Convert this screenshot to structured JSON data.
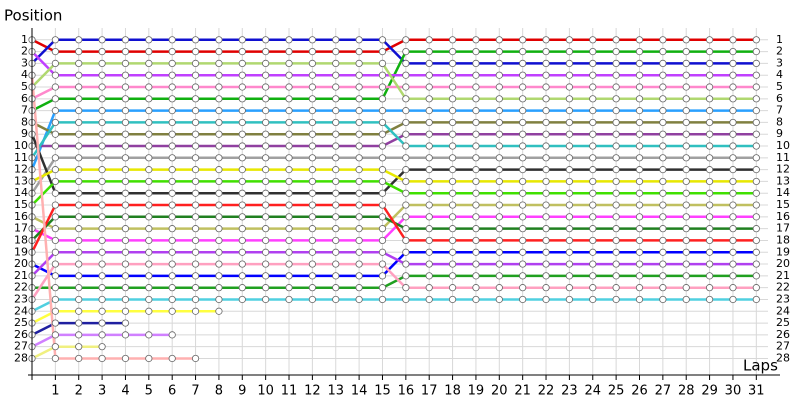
{
  "chart_data": {
    "type": "line",
    "xlabel": "Laps",
    "ylabel": "Position",
    "x": [
      0,
      1,
      2,
      3,
      4,
      5,
      6,
      7,
      8,
      9,
      10,
      11,
      12,
      13,
      14,
      15,
      16,
      17,
      18,
      19,
      20,
      21,
      22,
      23,
      24,
      25,
      26,
      27,
      28,
      29,
      30,
      31
    ],
    "xlim": [
      0,
      31.5
    ],
    "xticks": [
      1,
      2,
      3,
      4,
      5,
      6,
      7,
      8,
      9,
      10,
      11,
      12,
      13,
      14,
      15,
      16,
      17,
      18,
      19,
      20,
      21,
      22,
      23,
      24,
      25,
      26,
      27,
      28,
      29,
      30,
      31
    ],
    "ylim": [
      29.4,
      0
    ],
    "yticks": [
      1,
      2,
      3,
      4,
      5,
      6,
      7,
      8,
      9,
      10,
      11,
      12,
      13,
      14,
      15,
      16,
      17,
      18,
      19,
      20,
      21,
      22,
      23,
      24,
      25,
      26,
      27,
      28
    ],
    "grid": true,
    "series": [
      {
        "color": "#e00000",
        "values": [
          1,
          2,
          2,
          2,
          2,
          2,
          2,
          2,
          2,
          2,
          2,
          2,
          2,
          2,
          2,
          2,
          1,
          1,
          1,
          1,
          1,
          1,
          1,
          1,
          1,
          1,
          1,
          1,
          1,
          1,
          1,
          1
        ]
      },
      {
        "color": "#1010d0",
        "values": [
          3,
          1,
          1,
          1,
          1,
          1,
          1,
          1,
          1,
          1,
          1,
          1,
          1,
          1,
          1,
          1,
          3,
          3,
          3,
          3,
          3,
          3,
          3,
          3,
          3,
          3,
          3,
          3,
          3,
          3,
          3,
          3
        ]
      },
      {
        "color": "#10b010",
        "values": [
          7,
          6,
          6,
          6,
          6,
          6,
          6,
          6,
          6,
          6,
          6,
          6,
          6,
          6,
          6,
          6,
          2,
          2,
          2,
          2,
          2,
          2,
          2,
          2,
          2,
          2,
          2,
          2,
          2,
          2,
          2,
          2
        ]
      },
      {
        "color": "#c040ff",
        "values": [
          2,
          4,
          4,
          4,
          4,
          4,
          4,
          4,
          4,
          4,
          4,
          4,
          4,
          4,
          4,
          4,
          4,
          4,
          4,
          4,
          4,
          4,
          4,
          4,
          4,
          4,
          4,
          4,
          4,
          4,
          4,
          4
        ]
      },
      {
        "color": "#ff88cc",
        "values": [
          6,
          5,
          5,
          5,
          5,
          5,
          5,
          5,
          5,
          5,
          5,
          5,
          5,
          5,
          5,
          5,
          5,
          5,
          5,
          5,
          5,
          5,
          5,
          5,
          5,
          5,
          5,
          5,
          5,
          5,
          5,
          5
        ]
      },
      {
        "color": "#b0d870",
        "values": [
          5,
          3,
          3,
          3,
          3,
          3,
          3,
          3,
          3,
          3,
          3,
          3,
          3,
          3,
          3,
          3,
          6,
          6,
          6,
          6,
          6,
          6,
          6,
          6,
          6,
          6,
          6,
          6,
          6,
          6,
          6,
          6
        ]
      },
      {
        "color": "#2aa0ff",
        "values": [
          12,
          7,
          7,
          7,
          7,
          7,
          7,
          7,
          7,
          7,
          7,
          7,
          7,
          7,
          7,
          7,
          7,
          7,
          7,
          7,
          7,
          7,
          7,
          7,
          7,
          7,
          7,
          7,
          7,
          7,
          7,
          7
        ]
      },
      {
        "color": "#808040",
        "values": [
          8,
          9,
          9,
          9,
          9,
          9,
          9,
          9,
          9,
          9,
          9,
          9,
          9,
          9,
          9,
          9,
          8,
          8,
          8,
          8,
          8,
          8,
          8,
          8,
          8,
          8,
          8,
          8,
          8,
          8,
          8,
          8
        ]
      },
      {
        "color": "#9040a0",
        "values": [
          10,
          10,
          10,
          10,
          10,
          10,
          10,
          10,
          10,
          10,
          10,
          10,
          10,
          10,
          10,
          10,
          9,
          9,
          9,
          9,
          9,
          9,
          9,
          9,
          9,
          9,
          9,
          9,
          9,
          9,
          9,
          9
        ]
      },
      {
        "color": "#30c0c0",
        "values": [
          11,
          8,
          8,
          8,
          8,
          8,
          8,
          8,
          8,
          8,
          8,
          8,
          8,
          8,
          8,
          8,
          10,
          10,
          10,
          10,
          10,
          10,
          10,
          10,
          10,
          10,
          10,
          10,
          10,
          10,
          10,
          10
        ]
      },
      {
        "color": "#a0a0a0",
        "values": [
          14,
          11,
          11,
          11,
          11,
          11,
          11,
          11,
          11,
          11,
          11,
          11,
          11,
          11,
          11,
          11,
          11,
          11,
          11,
          11,
          11,
          11,
          11,
          11,
          11,
          11,
          11,
          11,
          11,
          11,
          11,
          11
        ]
      },
      {
        "color": "#303030",
        "values": [
          9,
          14,
          14,
          14,
          14,
          14,
          14,
          14,
          14,
          14,
          14,
          14,
          14,
          14,
          14,
          14,
          12,
          12,
          12,
          12,
          12,
          12,
          12,
          12,
          12,
          12,
          12,
          12,
          12,
          12,
          12,
          12
        ]
      },
      {
        "color": "#e8e800",
        "values": [
          13,
          12,
          12,
          12,
          12,
          12,
          12,
          12,
          12,
          12,
          12,
          12,
          12,
          12,
          12,
          12,
          13,
          13,
          13,
          13,
          13,
          13,
          13,
          13,
          13,
          13,
          13,
          13,
          13,
          13,
          13,
          13
        ]
      },
      {
        "color": "#40e000",
        "values": [
          15,
          13,
          13,
          13,
          13,
          13,
          13,
          13,
          13,
          13,
          13,
          13,
          13,
          13,
          13,
          13,
          14,
          14,
          14,
          14,
          14,
          14,
          14,
          14,
          14,
          14,
          14,
          14,
          14,
          14,
          14,
          14
        ]
      },
      {
        "color": "#c0c060",
        "values": [
          16,
          17,
          17,
          17,
          17,
          17,
          17,
          17,
          17,
          17,
          17,
          17,
          17,
          17,
          17,
          17,
          15,
          15,
          15,
          15,
          15,
          15,
          15,
          15,
          15,
          15,
          15,
          15,
          15,
          15,
          15,
          15
        ]
      },
      {
        "color": "#ff40ff",
        "values": [
          17,
          18,
          18,
          18,
          18,
          18,
          18,
          18,
          18,
          18,
          18,
          18,
          18,
          18,
          18,
          18,
          16,
          16,
          16,
          16,
          16,
          16,
          16,
          16,
          16,
          16,
          16,
          16,
          16,
          16,
          16,
          16
        ]
      },
      {
        "color": "#208020",
        "values": [
          18,
          16,
          16,
          16,
          16,
          16,
          16,
          16,
          16,
          16,
          16,
          16,
          16,
          16,
          16,
          16,
          17,
          17,
          17,
          17,
          17,
          17,
          17,
          17,
          17,
          17,
          17,
          17,
          17,
          17,
          17,
          17
        ]
      },
      {
        "color": "#ff2020",
        "values": [
          19,
          15,
          15,
          15,
          15,
          15,
          15,
          15,
          15,
          15,
          15,
          15,
          15,
          15,
          15,
          15,
          18,
          18,
          18,
          18,
          18,
          18,
          18,
          18,
          18,
          18,
          18,
          18,
          18,
          18,
          18,
          18
        ]
      },
      {
        "color": "#0000ff",
        "values": [
          20,
          21,
          21,
          21,
          21,
          21,
          21,
          21,
          21,
          21,
          21,
          21,
          21,
          21,
          21,
          21,
          19,
          19,
          19,
          19,
          19,
          19,
          19,
          19,
          19,
          19,
          19,
          19,
          19,
          19,
          19,
          19
        ]
      },
      {
        "color": "#b040f0",
        "values": [
          21,
          19,
          19,
          19,
          19,
          19,
          19,
          19,
          19,
          19,
          19,
          19,
          19,
          19,
          19,
          19,
          20,
          20,
          20,
          20,
          20,
          20,
          20,
          20,
          20,
          20,
          20,
          20,
          20,
          20,
          20,
          20
        ]
      },
      {
        "color": "#20a020",
        "values": [
          22,
          22,
          22,
          22,
          22,
          22,
          22,
          22,
          22,
          22,
          22,
          22,
          22,
          22,
          22,
          22,
          21,
          21,
          21,
          21,
          21,
          21,
          21,
          21,
          21,
          21,
          21,
          21,
          21,
          21,
          21,
          21
        ]
      },
      {
        "color": "#ffa0c0",
        "values": [
          23,
          20,
          20,
          20,
          20,
          20,
          20,
          20,
          20,
          20,
          20,
          20,
          20,
          20,
          20,
          20,
          22,
          22,
          22,
          22,
          22,
          22,
          22,
          22,
          22,
          22,
          22,
          22,
          22,
          22,
          22,
          22
        ]
      },
      {
        "color": "#50d0e0",
        "values": [
          24,
          23,
          23,
          23,
          23,
          23,
          23,
          23,
          23,
          23,
          23,
          23,
          23,
          23,
          23,
          23,
          23,
          23,
          23,
          23,
          23,
          23,
          23,
          23,
          23,
          23,
          23,
          23,
          23,
          23,
          23,
          23
        ]
      },
      {
        "color": "#ffff40",
        "values": [
          25,
          24,
          24,
          24,
          24,
          24,
          24,
          24,
          24,
          null,
          null,
          null,
          null,
          null,
          null,
          null,
          null,
          null,
          null,
          null,
          null,
          null,
          null,
          null,
          null,
          null,
          null,
          null,
          null,
          null,
          null,
          null
        ]
      },
      {
        "color": "#2020a0",
        "values": [
          26,
          25,
          25,
          25,
          25,
          null,
          null,
          null,
          null,
          null,
          null,
          null,
          null,
          null,
          null,
          null,
          null,
          null,
          null,
          null,
          null,
          null,
          null,
          null,
          null,
          null,
          null,
          null,
          null,
          null,
          null,
          null
        ]
      },
      {
        "color": "#d080ff",
        "values": [
          27,
          26,
          26,
          26,
          26,
          26,
          26,
          null,
          null,
          null,
          null,
          null,
          null,
          null,
          null,
          null,
          null,
          null,
          null,
          null,
          null,
          null,
          null,
          null,
          null,
          null,
          null,
          null,
          null,
          null,
          null,
          null
        ]
      },
      {
        "color": "#f0f080",
        "values": [
          28,
          27,
          27,
          27,
          null,
          null,
          null,
          null,
          null,
          null,
          null,
          null,
          null,
          null,
          null,
          null,
          null,
          null,
          null,
          null,
          null,
          null,
          null,
          null,
          null,
          null,
          null,
          null,
          null,
          null,
          null,
          null
        ]
      },
      {
        "color": "#ffb0b0",
        "values": [
          4,
          28,
          28,
          28,
          28,
          28,
          28,
          28,
          null,
          null,
          null,
          null,
          null,
          null,
          null,
          null,
          null,
          null,
          null,
          null,
          null,
          null,
          null,
          null,
          null,
          null,
          null,
          null,
          null,
          null,
          null,
          null
        ]
      }
    ]
  }
}
